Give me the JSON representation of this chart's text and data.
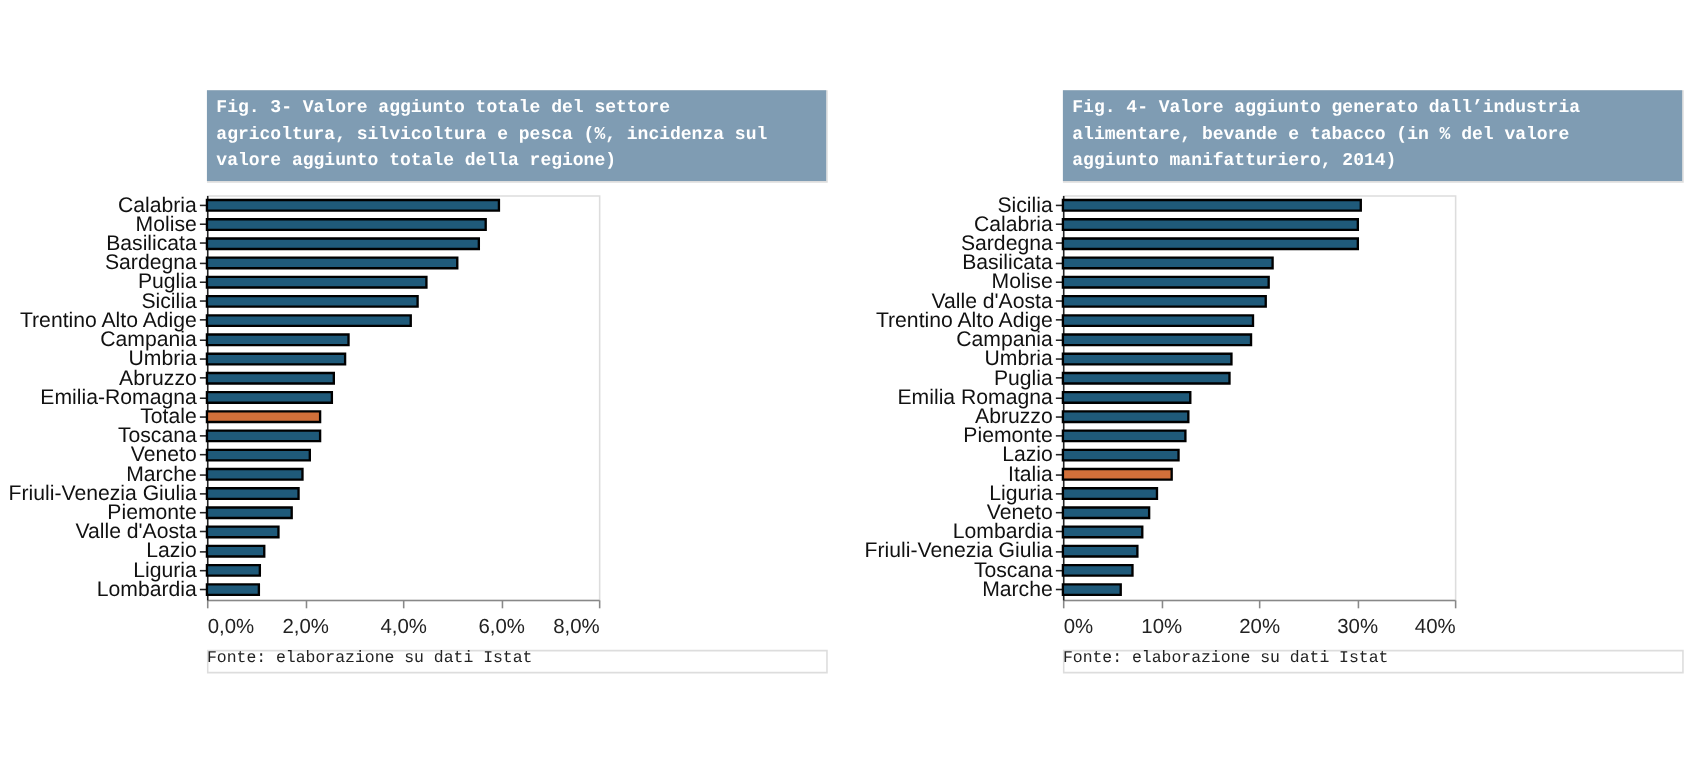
{
  "chart_data": [
    {
      "type": "bar",
      "orientation": "horizontal",
      "title": "Fig. 3- Valore aggiunto totale del settore agricoltura, silvicoltura e pesca (%, incidenza sul valore aggiunto totale della regione)",
      "categories": [
        "Calabria",
        "Molise",
        "Basilicata",
        "Sardegna",
        "Puglia",
        "Sicilia",
        "Trentino Alto Adige",
        "Campania",
        "Umbria",
        "Abruzzo",
        "Emilia-Romagna",
        "Totale",
        "Toscana",
        "Veneto",
        "Marche",
        "Friuli-Venezia Giulia",
        "Piemonte",
        "Valle d'Aosta",
        "Lazio",
        "Liguria",
        "Lombardia"
      ],
      "values": [
        5.96,
        5.69,
        5.55,
        5.11,
        4.48,
        4.3,
        4.16,
        2.89,
        2.82,
        2.59,
        2.55,
        2.31,
        2.31,
        2.1,
        1.95,
        1.87,
        1.73,
        1.46,
        1.17,
        1.08,
        1.06
      ],
      "colors": [
        "#1f5a7a",
        "#1f5a7a",
        "#1f5a7a",
        "#1f5a7a",
        "#1f5a7a",
        "#1f5a7a",
        "#1f5a7a",
        "#1f5a7a",
        "#1f5a7a",
        "#1f5a7a",
        "#1f5a7a",
        "#d2703a",
        "#1f5a7a",
        "#1f5a7a",
        "#1f5a7a",
        "#1f5a7a",
        "#1f5a7a",
        "#1f5a7a",
        "#1f5a7a",
        "#1f5a7a",
        "#1f5a7a"
      ],
      "xlim": [
        0,
        8
      ],
      "xticks": [
        {
          "value": 0,
          "label": "0,0%"
        },
        {
          "value": 2,
          "label": "2,0%"
        },
        {
          "value": 4,
          "label": "4,0%"
        },
        {
          "value": 6,
          "label": "6,0%"
        },
        {
          "value": 8,
          "label": "8,0%"
        }
      ],
      "grid": false,
      "annotations": [
        "Fonte: elaborazione su dati Istat"
      ]
    },
    {
      "type": "bar",
      "orientation": "horizontal",
      "title": "Fig. 4- Valore aggiunto generato dall’industria alimentare, bevande e tabacco (in % del valore aggiunto manifatturiero, 2014)",
      "categories": [
        "Sicilia",
        "Calabria",
        "Sardegna",
        "Basilicata",
        "Molise",
        "Valle d'Aosta",
        "Trentino Alto Adige",
        "Campania",
        "Umbria",
        "Puglia",
        "Emilia Romagna",
        "Abruzzo",
        "Piemonte",
        "Lazio",
        "Italia",
        "Liguria",
        "Veneto",
        "Lombardia",
        "Friuli-Venezia Giulia",
        "Toscana",
        "Marche"
      ],
      "values": [
        30.4,
        30.1,
        30.1,
        21.4,
        21.0,
        20.7,
        19.4,
        19.2,
        17.2,
        17.0,
        13.0,
        12.8,
        12.5,
        11.8,
        11.1,
        9.6,
        8.8,
        8.1,
        7.6,
        7.1,
        5.9
      ],
      "colors": [
        "#1f5a7a",
        "#1f5a7a",
        "#1f5a7a",
        "#1f5a7a",
        "#1f5a7a",
        "#1f5a7a",
        "#1f5a7a",
        "#1f5a7a",
        "#1f5a7a",
        "#1f5a7a",
        "#1f5a7a",
        "#1f5a7a",
        "#1f5a7a",
        "#1f5a7a",
        "#d2703a",
        "#1f5a7a",
        "#1f5a7a",
        "#1f5a7a",
        "#1f5a7a",
        "#1f5a7a",
        "#1f5a7a"
      ],
      "xlim": [
        0,
        40
      ],
      "xticks": [
        {
          "value": 0,
          "label": "0%"
        },
        {
          "value": 10,
          "label": "10%"
        },
        {
          "value": 20,
          "label": "20%"
        },
        {
          "value": 30,
          "label": "30%"
        },
        {
          "value": 40,
          "label": "40%"
        }
      ],
      "grid": false,
      "annotations": [
        "Fonte: elaborazione su dati Istat"
      ]
    }
  ]
}
